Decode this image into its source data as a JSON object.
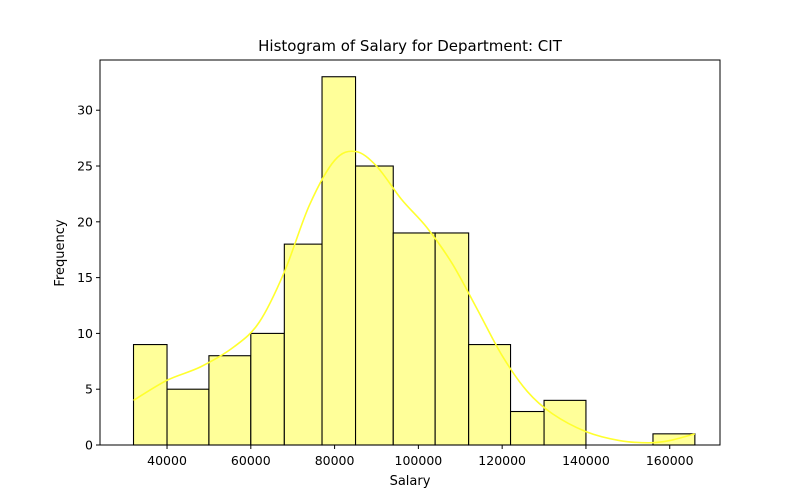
{
  "chart_data": {
    "type": "bar",
    "subtype": "histogram-with-kde",
    "title": "Histogram of Salary for Department: CIT",
    "xlabel": "Salary",
    "ylabel": "Frequency",
    "xlim": [
      24000,
      172000
    ],
    "ylim": [
      0,
      34.5
    ],
    "xticks": [
      40000,
      60000,
      80000,
      100000,
      120000,
      140000,
      160000
    ],
    "yticks": [
      0,
      5,
      10,
      15,
      20,
      25,
      30
    ],
    "bins": [
      {
        "start": 32000,
        "end": 40000,
        "count": 9
      },
      {
        "start": 40000,
        "end": 50000,
        "count": 5
      },
      {
        "start": 50000,
        "end": 60000,
        "count": 8
      },
      {
        "start": 60000,
        "end": 68000,
        "count": 10
      },
      {
        "start": 68000,
        "end": 77000,
        "count": 18
      },
      {
        "start": 77000,
        "end": 85000,
        "count": 33
      },
      {
        "start": 85000,
        "end": 94000,
        "count": 25
      },
      {
        "start": 94000,
        "end": 104000,
        "count": 19
      },
      {
        "start": 104000,
        "end": 112000,
        "count": 19
      },
      {
        "start": 112000,
        "end": 122000,
        "count": 9
      },
      {
        "start": 122000,
        "end": 130000,
        "count": 3
      },
      {
        "start": 130000,
        "end": 140000,
        "count": 4
      },
      {
        "start": 140000,
        "end": 148000,
        "count": 0
      },
      {
        "start": 148000,
        "end": 156000,
        "count": 0
      },
      {
        "start": 156000,
        "end": 166000,
        "count": 1
      }
    ],
    "kde": {
      "x": [
        32000,
        40000,
        48000,
        56000,
        62000,
        68000,
        74000,
        80000,
        85000,
        90000,
        96000,
        102000,
        108000,
        114000,
        120000,
        126000,
        132000,
        140000,
        148000,
        155000,
        160000,
        166000
      ],
      "y": [
        4.0,
        5.8,
        7.0,
        8.8,
        11.0,
        15.5,
        21.5,
        25.5,
        26.3,
        25.0,
        22.0,
        19.5,
        16.3,
        12.2,
        8.0,
        4.8,
        2.8,
        1.2,
        0.4,
        0.2,
        0.4,
        1.0
      ]
    },
    "grid": false,
    "legend": "none",
    "colors": {
      "bar_fill": "#ffff99",
      "bar_stroke": "#000000",
      "kde_line": "#ffff2e"
    }
  }
}
